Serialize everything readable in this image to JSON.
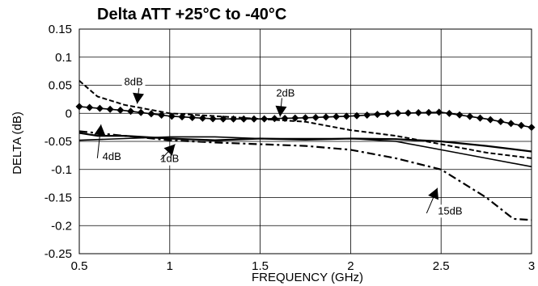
{
  "chart_data": {
    "type": "line",
    "title": "Delta ATT +25°C to -40°C",
    "xlabel": "FREQUENCY (GHz)",
    "ylabel": "DELTA (dB)",
    "xlim": [
      0.5,
      3
    ],
    "ylim": [
      -0.25,
      0.15
    ],
    "x_ticks": [
      0.5,
      1,
      1.5,
      2,
      2.5,
      3
    ],
    "x_tick_labels": [
      "0.5",
      "1",
      "1.5",
      "2",
      "2.5",
      "3"
    ],
    "y_ticks": [
      0.15,
      0.1,
      0.05,
      0,
      -0.05,
      -0.1,
      -0.15,
      -0.2,
      -0.25
    ],
    "y_tick_labels": [
      "0.15",
      "0.1",
      "0.05",
      "0",
      "-0.05",
      "-0.1",
      "-0.15",
      "-0.2",
      "-0.25"
    ],
    "grid": true,
    "legend": "none",
    "series": [
      {
        "name": "1dB",
        "color": "#000000",
        "style": "solid-thick",
        "x": [
          0.5,
          0.6,
          0.75,
          1.0,
          1.25,
          1.5,
          1.75,
          2.0,
          2.25,
          2.5,
          2.75,
          3.0
        ],
        "y": [
          -0.035,
          -0.04,
          -0.04,
          -0.045,
          -0.048,
          -0.045,
          -0.047,
          -0.045,
          -0.046,
          -0.05,
          -0.058,
          -0.068
        ]
      },
      {
        "name": "2dB",
        "color": "#000000",
        "style": "diamond-markers",
        "x": [
          0.5,
          0.75,
          1.0,
          1.25,
          1.5,
          1.75,
          2.0,
          2.25,
          2.5,
          2.75,
          3.0
        ],
        "y": [
          0.012,
          0.005,
          -0.005,
          -0.01,
          -0.01,
          -0.008,
          -0.005,
          0.0,
          0.002,
          -0.01,
          -0.025
        ]
      },
      {
        "name": "4dB",
        "color": "#000000",
        "style": "solid-thin",
        "x": [
          0.5,
          0.75,
          1.0,
          1.25,
          1.5,
          1.75,
          2.0,
          2.25,
          2.5,
          2.75,
          3.0
        ],
        "y": [
          -0.048,
          -0.045,
          -0.042,
          -0.042,
          -0.045,
          -0.045,
          -0.045,
          -0.05,
          -0.065,
          -0.08,
          -0.095
        ]
      },
      {
        "name": "8dB",
        "color": "#000000",
        "style": "dashed",
        "x": [
          0.5,
          0.6,
          0.75,
          1.0,
          1.25,
          1.5,
          1.75,
          2.0,
          2.25,
          2.5,
          2.75,
          3.0
        ],
        "y": [
          0.058,
          0.03,
          0.015,
          0.0,
          -0.005,
          -0.01,
          -0.015,
          -0.03,
          -0.04,
          -0.055,
          -0.07,
          -0.08
        ]
      },
      {
        "name": "15dB",
        "color": "#000000",
        "style": "dash-dot",
        "x": [
          0.5,
          0.75,
          1.0,
          1.25,
          1.5,
          1.75,
          2.0,
          2.25,
          2.5,
          2.75,
          2.9,
          3.0
        ],
        "y": [
          -0.032,
          -0.04,
          -0.048,
          -0.052,
          -0.055,
          -0.058,
          -0.065,
          -0.08,
          -0.1,
          -0.15,
          -0.188,
          -0.19
        ]
      }
    ],
    "annotations": [
      {
        "text": "8dB",
        "x": 0.8,
        "y": 0.05
      },
      {
        "text": "2dB",
        "x": 1.64,
        "y": 0.03
      },
      {
        "text": "4dB",
        "x": 0.68,
        "y": -0.083
      },
      {
        "text": "1dB",
        "x": 1.0,
        "y": -0.087
      },
      {
        "text": "15dB",
        "x": 2.55,
        "y": -0.18
      }
    ]
  }
}
